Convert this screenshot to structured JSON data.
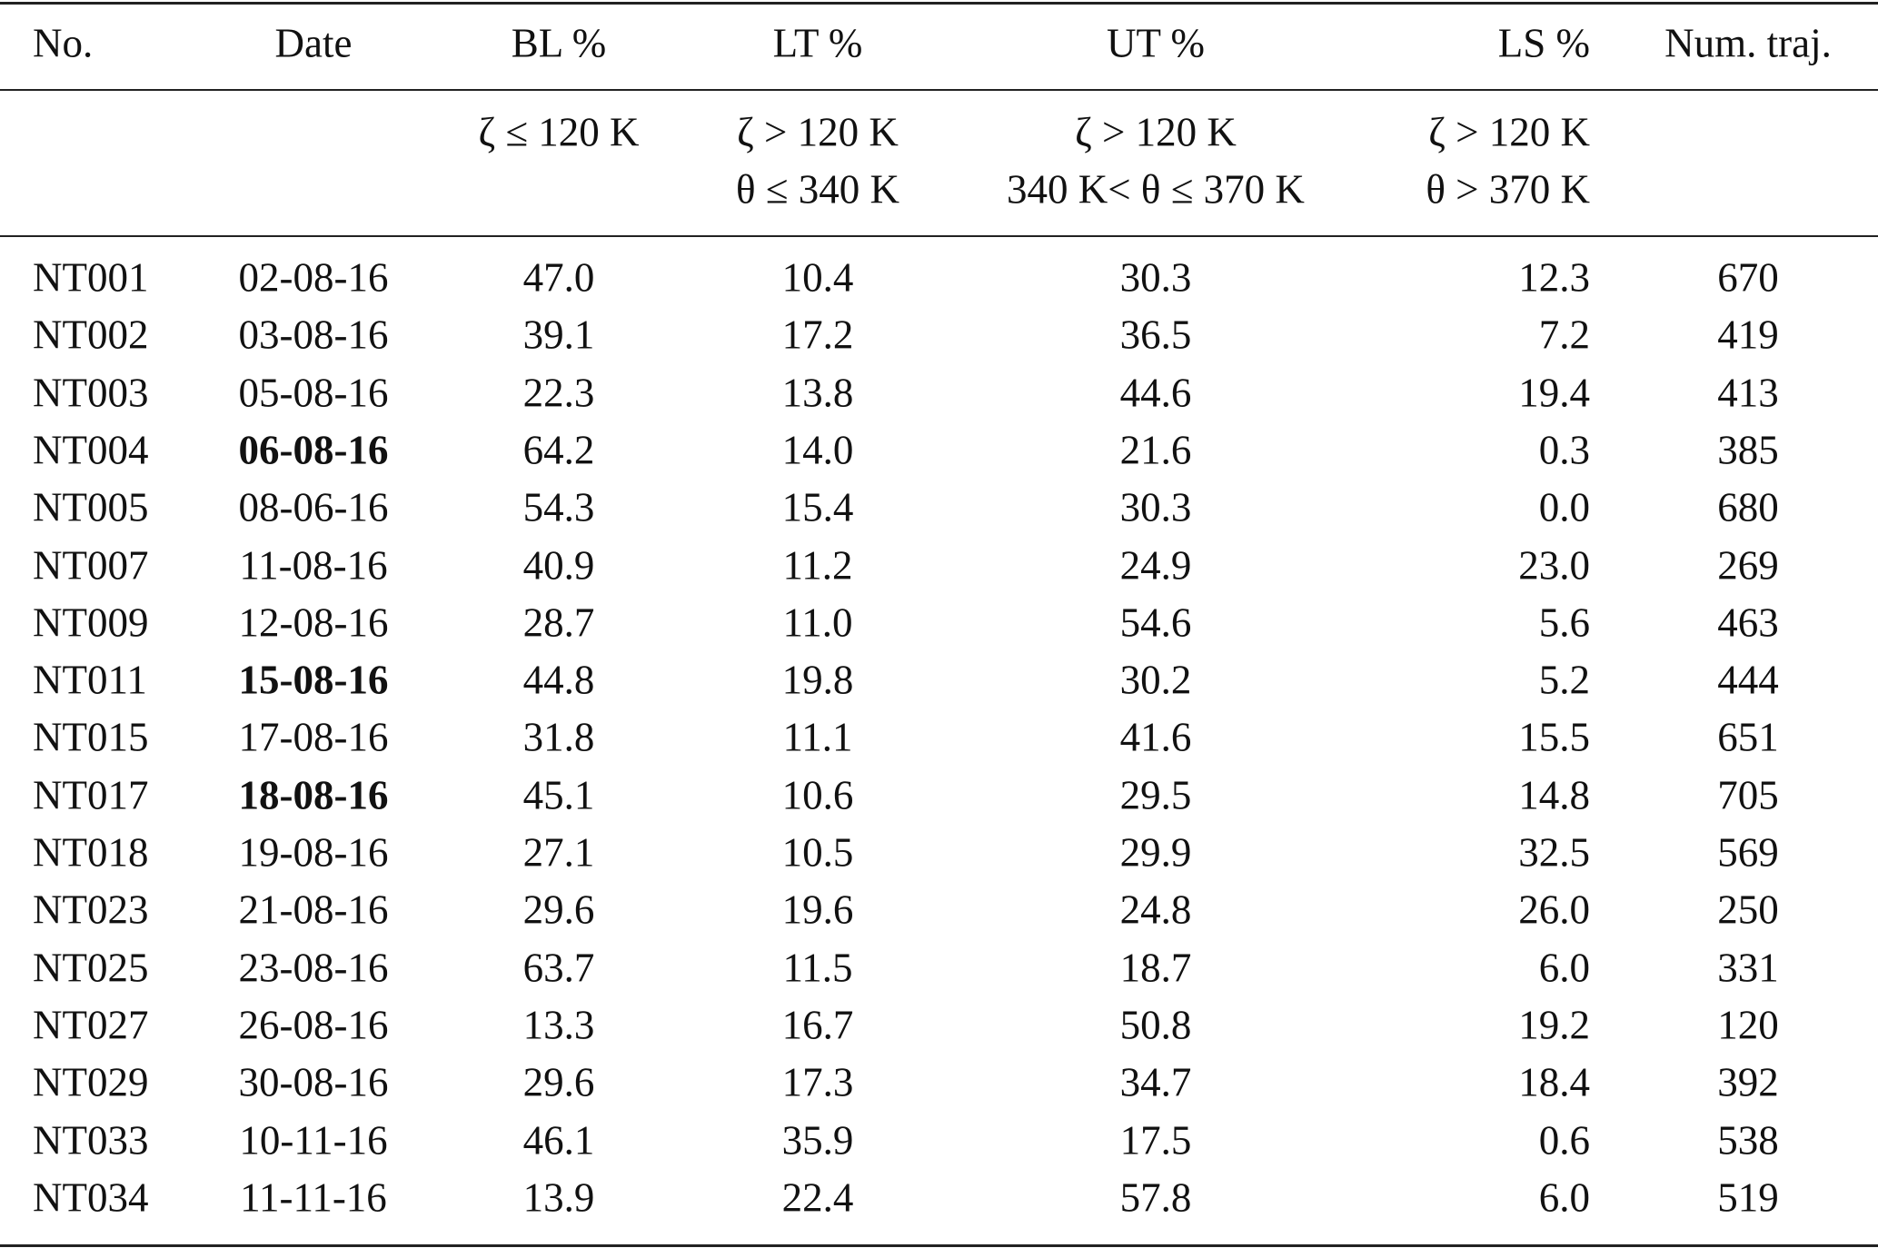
{
  "table": {
    "columns": [
      {
        "label": "No."
      },
      {
        "label": "Date"
      },
      {
        "label": "BL %",
        "conditions": [
          "ζ ≤ 120 K"
        ]
      },
      {
        "label": "LT %",
        "conditions": [
          "ζ > 120 K",
          "θ ≤ 340 K"
        ]
      },
      {
        "label": "UT %",
        "conditions": [
          "ζ > 120 K",
          "340 K< θ ≤ 370 K"
        ]
      },
      {
        "label": "LS %",
        "conditions": [
          "ζ > 120 K",
          "θ > 370 K"
        ]
      },
      {
        "label": "Num. traj."
      }
    ],
    "rows": [
      {
        "cells": [
          "NT001",
          "02-08-16",
          "47.0",
          "10.4",
          "30.3",
          "12.3",
          "670"
        ]
      },
      {
        "cells": [
          "NT002",
          "03-08-16",
          "39.1",
          "17.2",
          "36.5",
          "7.2",
          "419"
        ]
      },
      {
        "cells": [
          "NT003",
          "05-08-16",
          "22.3",
          "13.8",
          "44.6",
          "19.4",
          "413"
        ]
      },
      {
        "cells": [
          "NT004",
          "06-08-16",
          "64.2",
          "14.0",
          "21.6",
          "0.3",
          "385"
        ],
        "bold_date": true
      },
      {
        "cells": [
          "NT005",
          "08-06-16",
          "54.3",
          "15.4",
          "30.3",
          "0.0",
          "680"
        ]
      },
      {
        "cells": [
          "NT007",
          "11-08-16",
          "40.9",
          "11.2",
          "24.9",
          "23.0",
          "269"
        ]
      },
      {
        "cells": [
          "NT009",
          "12-08-16",
          "28.7",
          "11.0",
          "54.6",
          "5.6",
          "463"
        ]
      },
      {
        "cells": [
          "NT011",
          "15-08-16",
          "44.8",
          "19.8",
          "30.2",
          "5.2",
          "444"
        ],
        "bold_date": true
      },
      {
        "cells": [
          "NT015",
          "17-08-16",
          "31.8",
          "11.1",
          "41.6",
          "15.5",
          "651"
        ]
      },
      {
        "cells": [
          "NT017",
          "18-08-16",
          "45.1",
          "10.6",
          "29.5",
          "14.8",
          "705"
        ],
        "bold_date": true
      },
      {
        "cells": [
          "NT018",
          "19-08-16",
          "27.1",
          "10.5",
          "29.9",
          "32.5",
          "569"
        ]
      },
      {
        "cells": [
          "NT023",
          "21-08-16",
          "29.6",
          "19.6",
          "24.8",
          "26.0",
          "250"
        ]
      },
      {
        "cells": [
          "NT025",
          "23-08-16",
          "63.7",
          "11.5",
          "18.7",
          "6.0",
          "331"
        ]
      },
      {
        "cells": [
          "NT027",
          "26-08-16",
          "13.3",
          "16.7",
          "50.8",
          "19.2",
          "120"
        ]
      },
      {
        "cells": [
          "NT029",
          "30-08-16",
          "29.6",
          "17.3",
          "34.7",
          "18.4",
          "392"
        ]
      },
      {
        "cells": [
          "NT033",
          "10-11-16",
          "46.1",
          "35.9",
          "17.5",
          "0.6",
          "538"
        ]
      },
      {
        "cells": [
          "NT034",
          "11-11-16",
          "13.9",
          "22.4",
          "57.8",
          "6.0",
          "519"
        ]
      }
    ]
  }
}
